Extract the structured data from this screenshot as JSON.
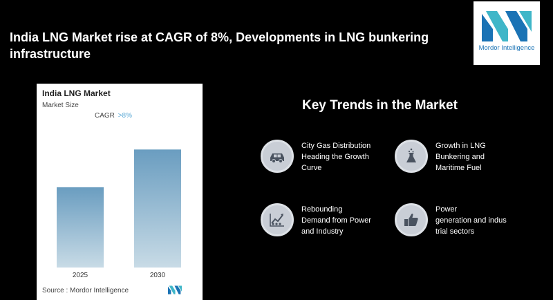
{
  "headline": "India LNG Market rise at CAGR of 8%, Developments in LNG bunkering infrastructure",
  "logo": {
    "text": "Mordor Intelligence",
    "brand_color": "#1a73b5",
    "accent_color": "#3fb6c8"
  },
  "card": {
    "title": "India LNG Market",
    "subtitle": "Market Size",
    "cagr_label": "CAGR",
    "cagr_value": ">8%",
    "source": "Source :  Mordor Intelligence"
  },
  "chart_data": {
    "type": "bar",
    "categories": [
      "2025",
      "2030"
    ],
    "values": [
      1.0,
      1.47
    ],
    "ylim": [
      0,
      1.55
    ],
    "title": "India LNG Market",
    "xlabel": "",
    "ylabel": "",
    "bar_color_top": "#6a9dc0",
    "bar_color_bottom": "#c8dbe6"
  },
  "trends": {
    "title": "Key Trends in the Market",
    "items": [
      {
        "icon": "car-icon",
        "label_lines": [
          "City Gas Distribution",
          "Heading the Growth",
          "Curve"
        ]
      },
      {
        "icon": "flask-icon",
        "label_lines": [
          "Growth in LNG",
          "Bunkering and",
          "Maritime Fuel"
        ]
      },
      {
        "icon": "growth-chart-icon",
        "label_lines": [
          "Rebounding",
          "Demand from Power",
          "and Industry"
        ]
      },
      {
        "icon": "thumbs-up-icon",
        "label_lines": [
          "Power",
          "generation and indus",
          "trial sectors"
        ]
      }
    ]
  }
}
